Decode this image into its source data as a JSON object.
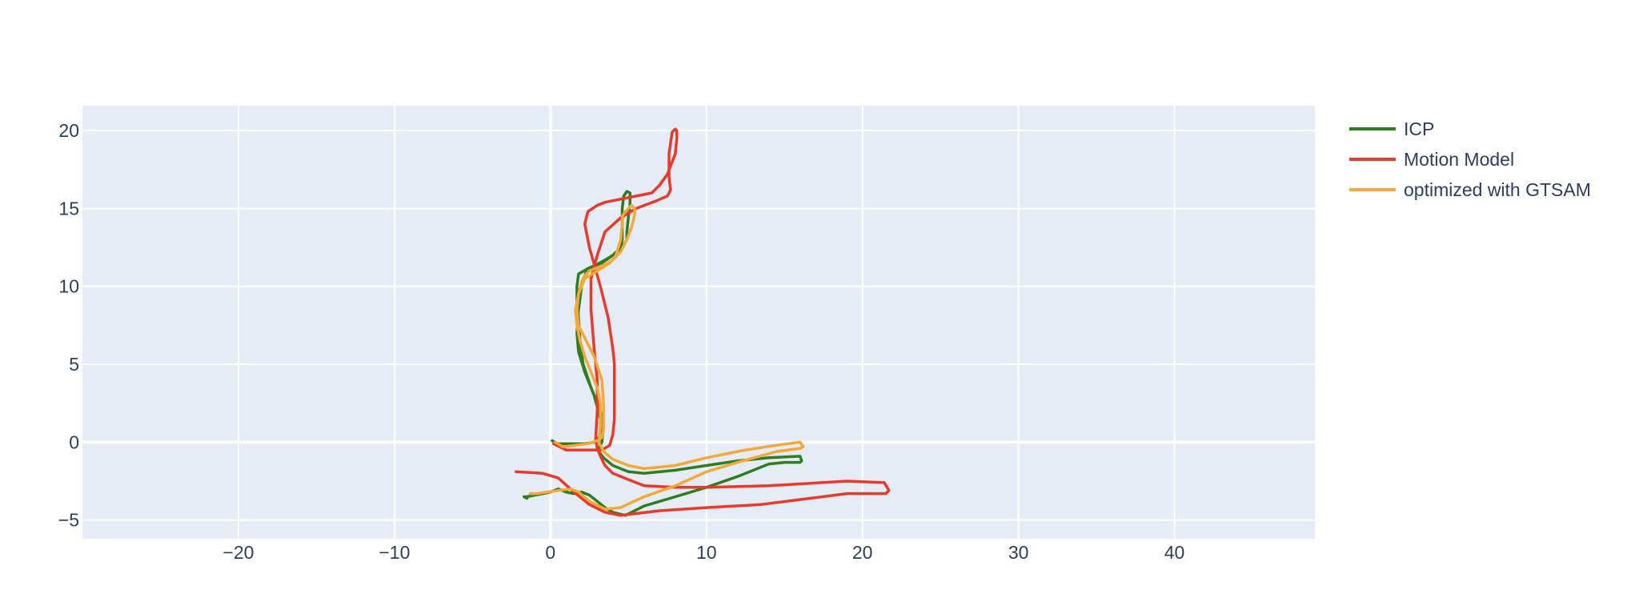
{
  "chart_data": {
    "type": "line",
    "title": "",
    "xlabel": "",
    "ylabel": "",
    "xlim": [
      -30,
      49
    ],
    "ylim": [
      -6.2,
      21.6
    ],
    "x_ticks": [
      -20,
      -10,
      0,
      10,
      20,
      30,
      40
    ],
    "y_ticks": [
      -5,
      0,
      5,
      10,
      15,
      20
    ],
    "x_tick_labels": [
      "−20",
      "−10",
      "0",
      "10",
      "20",
      "30",
      "40"
    ],
    "y_tick_labels": [
      "−5",
      "0",
      "5",
      "10",
      "15",
      "20"
    ],
    "grid": true,
    "background": "#e5ecf6",
    "legend_position": "right",
    "series": [
      {
        "name": "ICP",
        "color": "#2e7d1f",
        "x": [
          0.1,
          0.5,
          1.5,
          2.2,
          2.8,
          3.1,
          3.3,
          3.2,
          2.8,
          2.2,
          1.8,
          1.7,
          1.8,
          2.0,
          2.3,
          2.8,
          3.5,
          4.0,
          4.5,
          4.6,
          4.6,
          4.6,
          4.7,
          4.9,
          5.1,
          5.1,
          5.0,
          4.9,
          4.9,
          4.6,
          4.0,
          3.3,
          2.5,
          1.8,
          1.7,
          1.7,
          1.8,
          1.9,
          2.1,
          2.6,
          3.2,
          3.4,
          3.3,
          3.1,
          3.1,
          3.4,
          4.0,
          5.0,
          6.0,
          8.0,
          10.0,
          12.0,
          14.0,
          16.0,
          16.1,
          16.0,
          15.0,
          14.0,
          13.5,
          12.0,
          10.0,
          8.0,
          6.0,
          4.8,
          4.0,
          3.5,
          3.0,
          2.5,
          2.0,
          1.5,
          1.0,
          0.5,
          0.0,
          -0.5,
          -1.0,
          -1.5,
          -1.7,
          -1.5
        ],
        "y": [
          0.1,
          -0.1,
          -0.1,
          -0.1,
          0.0,
          0.3,
          0.8,
          1.5,
          3.0,
          4.5,
          5.8,
          7.0,
          8.5,
          10.0,
          11.0,
          11.3,
          11.7,
          12.0,
          12.5,
          13.0,
          14.0,
          15.0,
          15.8,
          16.1,
          16.0,
          15.2,
          14.5,
          13.5,
          13.0,
          12.5,
          12.0,
          11.5,
          11.2,
          10.8,
          10.0,
          9.0,
          8.0,
          6.5,
          5.0,
          3.5,
          2.0,
          1.0,
          0.0,
          -0.4,
          -0.6,
          -1.0,
          -1.5,
          -1.9,
          -2.0,
          -1.8,
          -1.5,
          -1.2,
          -1.0,
          -0.9,
          -1.2,
          -1.3,
          -1.3,
          -1.4,
          -1.6,
          -2.2,
          -2.9,
          -3.5,
          -4.1,
          -4.7,
          -4.5,
          -4.2,
          -3.8,
          -3.4,
          -3.2,
          -3.3,
          -3.2,
          -3.0,
          -3.2,
          -3.3,
          -3.4,
          -3.5,
          -3.5,
          -3.6
        ]
      },
      {
        "name": "Motion Model",
        "color": "#e8392a",
        "x": [
          0.2,
          1.0,
          2.5,
          3.3,
          3.8,
          4.0,
          4.1,
          4.1,
          4.0,
          3.7,
          3.2,
          2.5,
          2.2,
          2.4,
          2.7,
          3.0,
          3.5,
          4.0,
          5.0,
          6.5,
          7.0,
          7.5,
          8.0,
          8.1,
          8.1,
          8.0,
          7.8,
          7.6,
          7.6,
          7.7,
          7.5,
          6.8,
          5.5,
          4.5,
          3.5,
          3.0,
          2.6,
          2.6,
          2.8,
          3.0,
          3.0,
          2.9,
          3.0,
          3.2,
          3.5,
          4.0,
          5.0,
          6.0,
          8.0,
          10.0,
          14.0,
          19.0,
          21.4,
          21.7,
          21.5,
          19.0,
          13.5,
          10.0,
          7.0,
          4.5,
          3.5,
          2.5,
          1.5,
          0.5,
          -0.5,
          -2.2
        ],
        "y": [
          -0.1,
          -0.5,
          -0.5,
          -0.5,
          -0.2,
          0.5,
          1.5,
          5.0,
          6.0,
          8.0,
          10.0,
          12.5,
          14.0,
          14.8,
          15.0,
          15.2,
          15.4,
          15.5,
          15.7,
          16.0,
          16.5,
          17.2,
          18.5,
          19.5,
          20.0,
          20.1,
          19.9,
          18.5,
          17.0,
          16.2,
          15.8,
          15.5,
          15.0,
          14.4,
          13.5,
          12.0,
          10.5,
          8.5,
          6.0,
          4.0,
          2.0,
          0.2,
          -0.4,
          -0.9,
          -1.5,
          -2.0,
          -2.4,
          -2.8,
          -2.9,
          -2.9,
          -2.8,
          -2.5,
          -2.6,
          -3.1,
          -3.3,
          -3.3,
          -4.0,
          -4.2,
          -4.4,
          -4.7,
          -4.5,
          -4.0,
          -3.2,
          -2.3,
          -2.0,
          -1.9
        ]
      },
      {
        "name": "optimized with GTSAM",
        "color": "#f5a83a",
        "x": [
          0.3,
          0.8,
          1.6,
          2.4,
          3.0,
          3.3,
          3.4,
          3.4,
          3.3,
          2.8,
          2.3,
          1.8,
          1.7,
          1.8,
          2.0,
          2.2,
          2.5,
          3.0,
          3.5,
          4.0,
          4.5,
          4.9,
          5.2,
          5.4,
          5.4,
          5.2,
          5.0,
          4.8,
          4.6,
          4.6,
          4.5,
          4.2,
          3.8,
          3.0,
          2.2,
          1.8,
          1.6,
          1.7,
          1.9,
          2.2,
          2.6,
          3.0,
          3.2,
          3.2,
          3.1,
          3.4,
          4.0,
          5.0,
          6.0,
          8.0,
          10.0,
          12.5,
          14.5,
          16.0,
          16.2,
          16.0,
          14.5,
          12.0,
          10.0,
          8.0,
          6.0,
          4.5,
          3.5,
          2.5,
          1.8,
          1.3,
          0.5,
          -0.2,
          -0.9,
          -1.3
        ],
        "y": [
          0.0,
          -0.3,
          -0.2,
          -0.1,
          0.1,
          0.3,
          0.8,
          2.5,
          4.0,
          5.5,
          6.5,
          7.5,
          8.5,
          9.5,
          10.3,
          10.7,
          11.0,
          11.2,
          11.4,
          11.7,
          12.2,
          13.0,
          13.8,
          14.6,
          15.0,
          15.2,
          15.0,
          14.8,
          14.5,
          14.0,
          13.0,
          12.0,
          11.5,
          11.0,
          10.5,
          9.5,
          8.5,
          7.5,
          6.5,
          5.5,
          4.5,
          3.5,
          2.5,
          1.0,
          0.0,
          -0.6,
          -1.1,
          -1.5,
          -1.7,
          -1.5,
          -1.0,
          -0.5,
          -0.2,
          0.0,
          -0.3,
          -0.4,
          -0.6,
          -1.3,
          -1.9,
          -2.8,
          -3.5,
          -4.2,
          -4.3,
          -3.8,
          -3.2,
          -3.0,
          -3.1,
          -3.2,
          -3.3,
          -3.3
        ]
      }
    ]
  }
}
